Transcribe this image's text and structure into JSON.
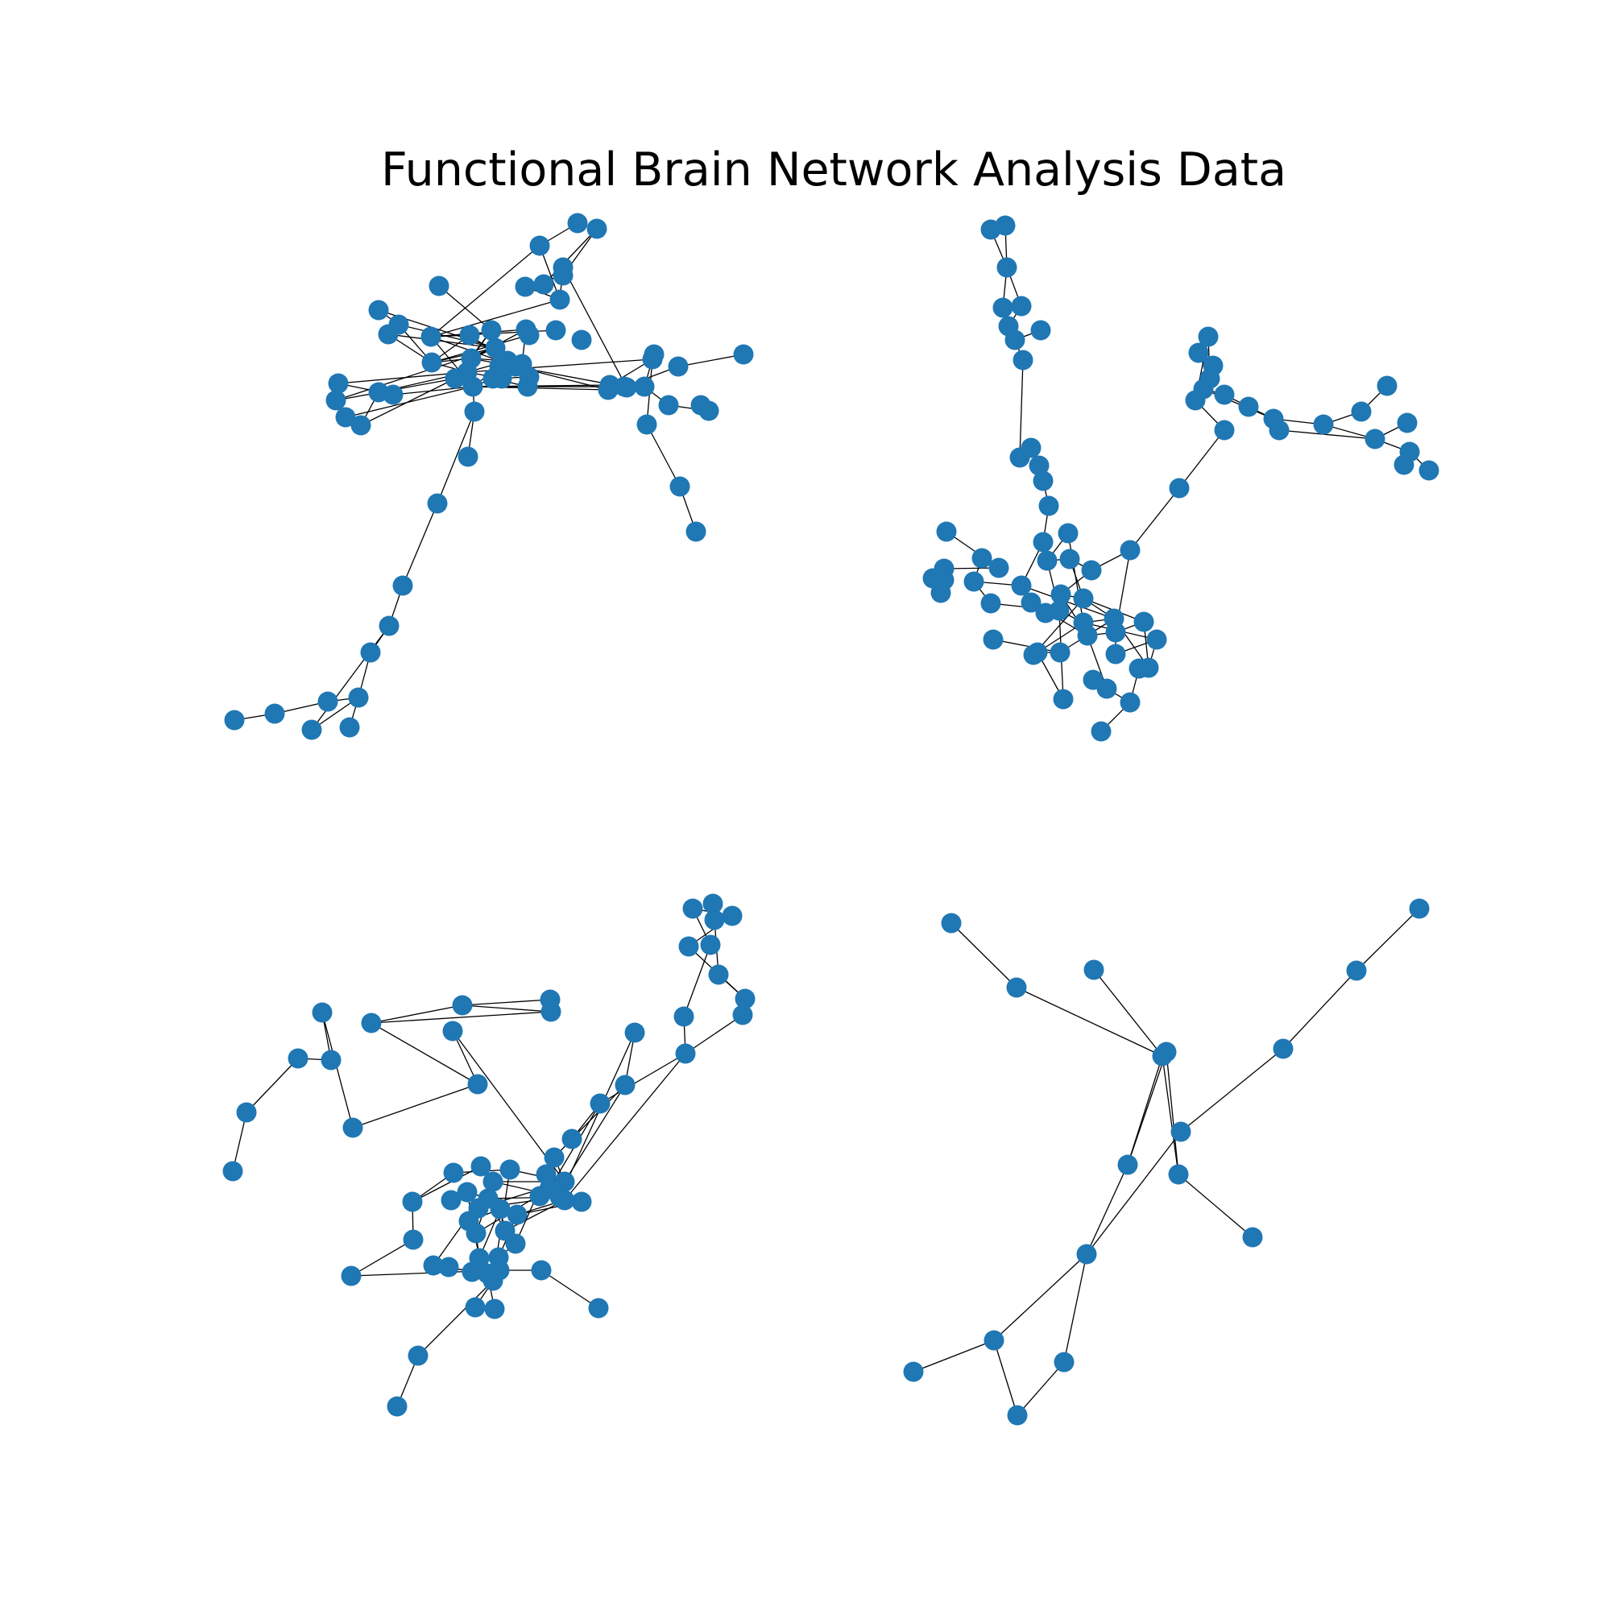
{
  "figure": {
    "title": "Functional Brain Network Analysis Data"
  },
  "style": {
    "node_color": "#1f77b4",
    "edge_color": "#000000",
    "background": "#ffffff"
  },
  "chart_data": {
    "type": "network",
    "panel_count": 4,
    "networks": [
      {
        "position": "top-left",
        "node_count": 66
      },
      {
        "position": "top-right",
        "node_count": 73
      },
      {
        "position": "bottom-left",
        "node_count": 66
      },
      {
        "position": "bottom-right",
        "node_count": 17
      }
    ]
  }
}
